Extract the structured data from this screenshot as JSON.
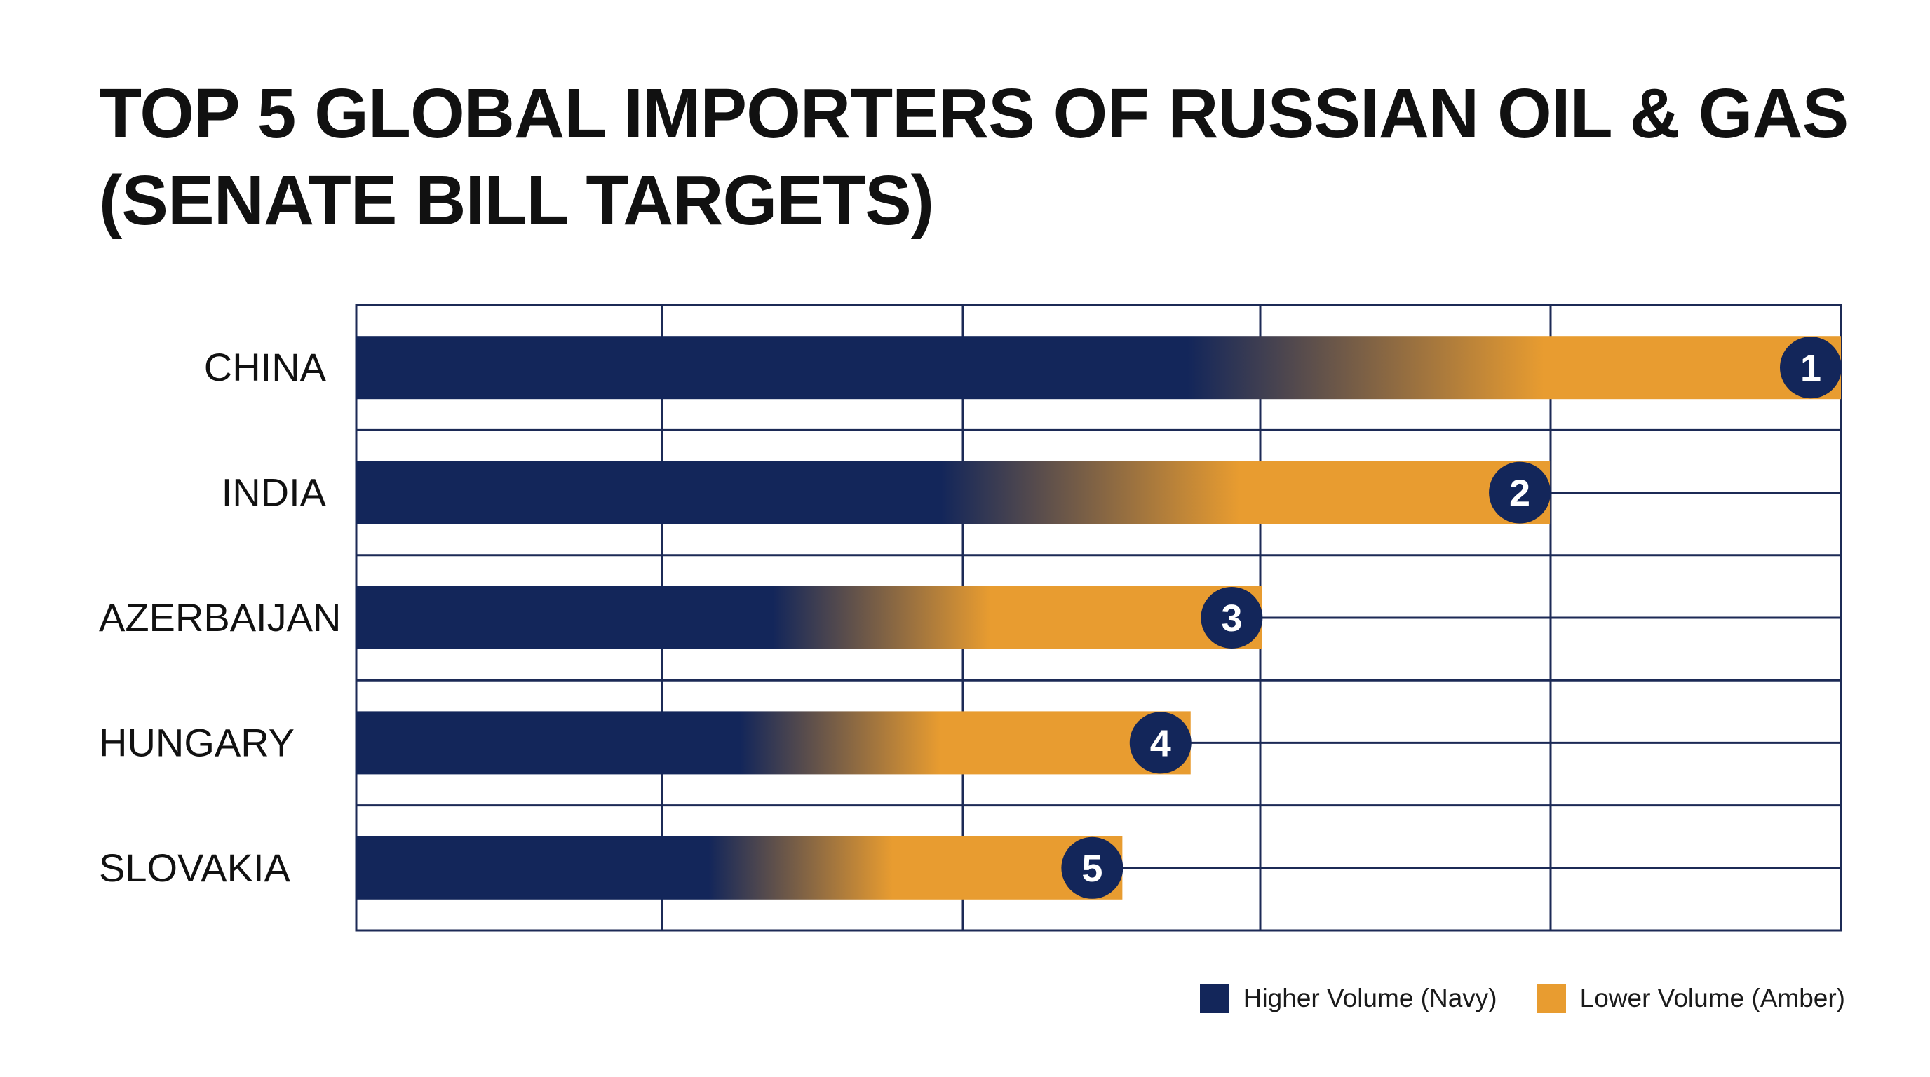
{
  "colors": {
    "navy": "#13265a",
    "amber": "#e89c30",
    "grid": "#1c2a56",
    "badge": "#13265a",
    "badge_text": "#ffffff"
  },
  "chart_data": {
    "type": "bar",
    "orientation": "horizontal",
    "title_lines": [
      "TOP 5 GLOBAL IMPORTERS OF RUSSIAN OIL & GAS",
      "(SENATE BILL TARGETS)"
    ],
    "xlabel": "",
    "ylabel": "",
    "categories": [
      "CHINA",
      "INDIA",
      "AZERBAIJAN",
      "HUNGARY",
      "SLOVAKIA"
    ],
    "ranks": [
      "1",
      "2",
      "3",
      "4",
      "5"
    ],
    "values": [
      100,
      80.4,
      61,
      56.2,
      51.6
    ],
    "xlim": [
      0,
      100
    ],
    "grid": true,
    "legend_position": "bottom-right",
    "legend": [
      {
        "label": "Higher Volume (Navy)",
        "color": "#13265a"
      },
      {
        "label": "Lower Volume (Amber)",
        "color": "#e89c30"
      }
    ]
  }
}
